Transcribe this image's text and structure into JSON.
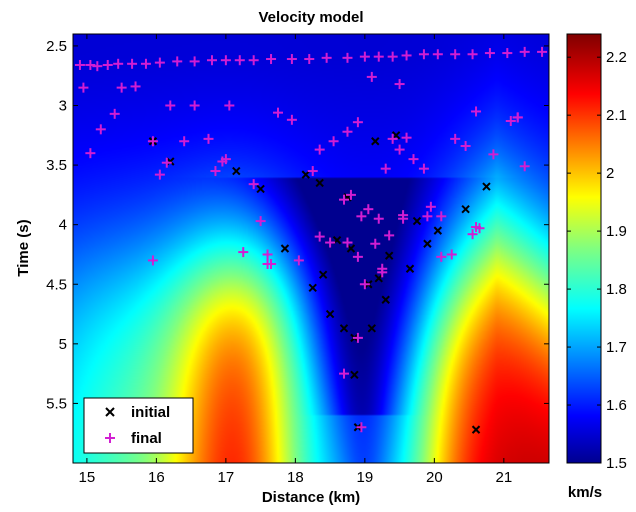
{
  "chart_data": {
    "type": "heatmap",
    "title": "Velocity model",
    "xlabel": "Distance (km)",
    "ylabel": "Time (s)",
    "xlim": [
      14.8,
      21.65
    ],
    "ylim": [
      2.4,
      6.0
    ],
    "y_reversed": true,
    "x_ticks": [
      15,
      16,
      17,
      18,
      19,
      20,
      21
    ],
    "y_ticks": [
      2.5,
      3,
      3.5,
      4,
      4.5,
      5,
      5.5
    ],
    "colorbar": {
      "label": "km/s",
      "range": [
        1.5,
        2.24
      ],
      "ticks": [
        1.5,
        1.6,
        1.7,
        1.8,
        1.9,
        2,
        2.1,
        2.2
      ],
      "colormap": "jet"
    },
    "legend": {
      "placement": "bottom-left"
    },
    "series": [
      {
        "name": "initial",
        "marker": "x",
        "color": "#000000",
        "x": [
          15.95,
          16.2,
          17.15,
          17.5,
          17.85,
          18.15,
          18.25,
          18.35,
          18.4,
          18.5,
          18.6,
          18.7,
          18.75,
          18.8,
          18.85,
          18.85,
          18.9,
          19.05,
          19.1,
          19.15,
          19.2,
          19.3,
          19.35,
          19.45,
          19.65,
          19.75,
          19.9,
          20.05,
          20.45,
          20.6,
          20.75
        ],
        "y": [
          3.3,
          3.47,
          3.55,
          3.7,
          4.2,
          3.58,
          4.53,
          3.65,
          4.42,
          4.75,
          4.13,
          4.87,
          3.77,
          4.2,
          4.95,
          5.26,
          5.7,
          4.5,
          4.87,
          3.3,
          4.45,
          4.63,
          4.26,
          3.25,
          4.37,
          3.97,
          4.16,
          4.05,
          3.87,
          5.72,
          3.68
        ]
      },
      {
        "name": "final",
        "marker": "+",
        "color": "#d21ed2",
        "x": [
          14.9,
          15.05,
          15.15,
          15.3,
          15.45,
          15.65,
          15.85,
          16.05,
          16.3,
          16.55,
          16.8,
          17.0,
          17.2,
          17.4,
          17.65,
          17.95,
          18.2,
          18.45,
          18.75,
          19.0,
          19.2,
          19.4,
          19.6,
          19.85,
          20.05,
          20.3,
          20.55,
          20.8,
          21.05,
          21.3,
          21.55,
          14.95,
          15.5,
          15.7,
          15.05,
          15.2,
          15.4,
          15.95,
          16.05,
          16.2,
          16.4,
          16.55,
          16.75,
          16.85,
          16.95,
          17.05,
          17.4,
          17.5,
          17.6,
          17.75,
          17.95,
          18.25,
          18.35,
          18.55,
          18.7,
          18.75,
          18.8,
          18.9,
          18.95,
          19.05,
          19.2,
          19.3,
          19.4,
          19.5,
          19.6,
          19.7,
          19.85,
          19.95,
          20.1,
          20.3,
          20.45,
          20.6,
          20.85,
          21.1,
          21.2,
          21.3,
          15.95,
          16.15,
          17.0,
          17.25,
          17.6,
          17.65,
          18.05,
          18.35,
          18.5,
          18.75,
          18.9,
          19.0,
          19.15,
          19.25,
          19.35,
          19.55,
          19.9,
          20.1,
          20.25,
          20.55,
          20.65,
          18.7,
          18.95,
          18.9,
          19.25,
          19.55,
          19.1,
          19.5,
          20.6,
          21.2
        ],
        "y": [
          2.66,
          2.66,
          2.67,
          2.66,
          2.65,
          2.65,
          2.65,
          2.64,
          2.63,
          2.63,
          2.62,
          2.62,
          2.62,
          2.62,
          2.61,
          2.61,
          2.61,
          2.6,
          2.6,
          2.59,
          2.59,
          2.59,
          2.58,
          2.57,
          2.57,
          2.57,
          2.57,
          2.56,
          2.56,
          2.55,
          2.55,
          2.85,
          2.85,
          2.84,
          3.4,
          3.2,
          3.07,
          3.3,
          3.58,
          3.0,
          3.3,
          3.0,
          3.28,
          3.55,
          3.47,
          3.0,
          3.66,
          3.97,
          4.33,
          3.06,
          3.12,
          3.55,
          3.37,
          3.3,
          3.79,
          3.22,
          3.75,
          3.14,
          3.93,
          3.87,
          3.95,
          3.53,
          3.28,
          3.37,
          3.27,
          3.45,
          3.53,
          3.85,
          3.93,
          3.28,
          3.34,
          3.05,
          3.41,
          3.13,
          3.1,
          3.51,
          4.3,
          3.48,
          3.45,
          4.23,
          4.25,
          4.33,
          4.3,
          4.1,
          4.15,
          4.15,
          4.27,
          4.5,
          4.16,
          4.37,
          4.09,
          3.95,
          3.93,
          4.27,
          4.25,
          4.08,
          4.03,
          5.25,
          5.7,
          4.95,
          4.4,
          3.92,
          2.76,
          2.82,
          4.02,
          3.1
        ]
      }
    ]
  }
}
